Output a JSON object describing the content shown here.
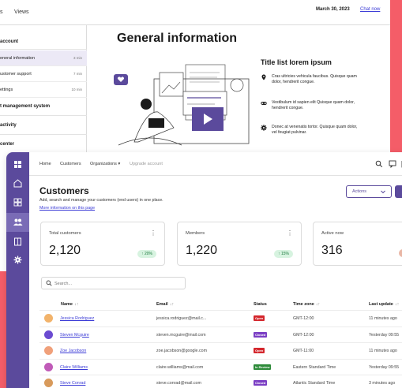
{
  "back_window": {
    "tab_left": "s",
    "tab_views": "Views",
    "date": "March 30, 2023",
    "help_link": "Chat now",
    "sidebar": {
      "section_1": "account",
      "items": [
        {
          "label": "eneral information",
          "time": "3 min",
          "active": true
        },
        {
          "label": "ustomer support",
          "time": "7 min",
          "active": false
        },
        {
          "label": "ettings",
          "time": "10 min",
          "active": false
        }
      ],
      "section_2": "t management system",
      "section_3": "activity",
      "section_4": "center"
    },
    "page_title": "General information",
    "list_title": "Title list lorem ipsum",
    "list_items": [
      {
        "icon": "map-pin-icon",
        "text": "Cras ultricies vehicula faucibus. Quisque quam dolor, hendrerit congue."
      },
      {
        "icon": "link-icon",
        "text": "Vestibulum id sapien elit Quisque quam dolor, hendrerit congue."
      },
      {
        "icon": "gear-icon",
        "text": "Donec at venenatis tortor. Quisque quam dolor, vel feugiat pulvinar."
      }
    ]
  },
  "front_window": {
    "rail_icons": [
      "dashboard-icon",
      "home-icon",
      "grid-icon",
      "users-icon",
      "building-icon",
      "settings-icon"
    ],
    "breadcrumbs": {
      "home": "Home",
      "customers": "Customers",
      "organizations": "Organizations",
      "upgrade": "Upgrade account"
    },
    "title": "Customers",
    "subtitle": "Add, search and manage your customers (end users) in one place.",
    "info_link": "More information on this page",
    "actions_label": "Actions",
    "cards": [
      {
        "label": "Total customers",
        "value": "2,120",
        "change": "20%"
      },
      {
        "label": "Members",
        "value": "1,220",
        "change": "15%"
      },
      {
        "label": "Active now",
        "value": "316"
      }
    ],
    "search_placeholder": "Search...",
    "columns": {
      "name": "Name",
      "email": "Email",
      "status": "Status",
      "timezone": "Time zone",
      "last_update": "Last update"
    },
    "rows": [
      {
        "name": "Jessica Rodriguez",
        "email": "jessica.rodriguez@mail.c...",
        "status": "Open",
        "timezone": "GMT-12:00",
        "last_update": "11 minutes ago"
      },
      {
        "name": "Steven Mcguire",
        "email": "steven.mcguire@mail.com",
        "status": "Closed",
        "timezone": "GMT-12:00",
        "last_update": "Yesterday 09:55"
      },
      {
        "name": "Zoe Jacobson",
        "email": "zoe.jacobson@google.com",
        "status": "Open",
        "timezone": "GMT-11:00",
        "last_update": "11 minutes ago"
      },
      {
        "name": "Claire Williams",
        "email": "claire.williams@mail.com",
        "status": "In Review",
        "timezone": "Eastern Standard Time",
        "last_update": "Yesterday 09:55"
      },
      {
        "name": "Steve Conrad",
        "email": "steve.conrad@mail.com",
        "status": "Closed",
        "timezone": "Atlantic Standard Time",
        "last_update": "3 minutes ago"
      }
    ],
    "status_colors": {
      "Open": "#d4262c",
      "Closed": "#7b3fc4",
      "In Review": "#2e8b3a"
    },
    "avatar_colors": [
      "#f2b36b",
      "#6b4bd1",
      "#f0a07a",
      "#c05bb8",
      "#d89a5b"
    ]
  }
}
